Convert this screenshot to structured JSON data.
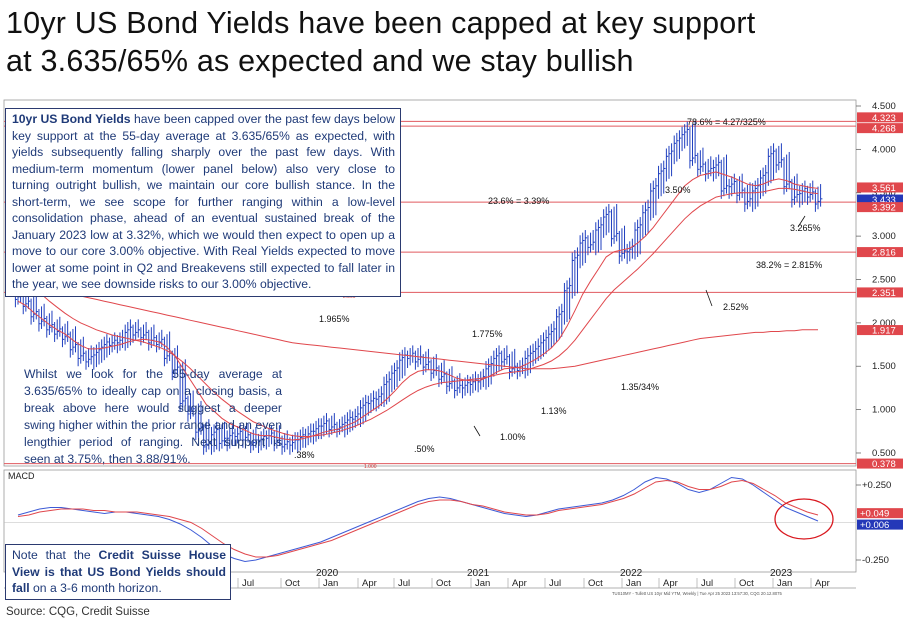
{
  "headline": {
    "line1": "10yr US Bond Yields have been capped at key support",
    "line2": "at 3.635/65% as expected and we stay bullish"
  },
  "annotation_box": {
    "bold_lead": "10yr US Bond Yields",
    "text": " have been capped over the past few days below key support at the 55-day average at 3.635/65% as expected, with yields subsequently falling sharply over the past few days. With medium-term momentum (lower panel below) also very close to turning outright bullish, we maintain our core bullish stance. In the short-term, we see scope for further ranging within a low-level consolidation phase, ahead of an eventual sustained break of the January 2023 low at 3.32%, which we would then expect to open up a move to our core 3.00% objective. With Real Yields expected to move lower at some point in Q2 and Breakevens still expected to fall later in the year, we see downside risks to our 3.00% objective."
  },
  "free_note": "Whilst we look for the 55-day average at 3.635/65% to ideally cap on a closing basis, a break above here would suggest a deeper swing higher within the prior range and an even lengthier period of ranging. Next support is seen at 3.75%, then 3.88/91%.",
  "house_view": {
    "prefix": "Note that the ",
    "bold": "Credit Suisse House View is that US Bond Yields should fall",
    "suffix": " on a 3-6 month horizon."
  },
  "source": "Source: CQG, Credit Suisse",
  "footer_small": "TUS10MY - Tullett US 10yr Mid YTM, Weekly | Tue Apr 25 2023 13:57:30, CQG 20.12.8075",
  "colors": {
    "bar": "#1f3fbf",
    "ma_red": "#e0474c",
    "hline": "#e15a5f",
    "text_blue": "#1f3a78",
    "macd_blue": "#3d5bd6",
    "signal_red": "#e0474c",
    "circle": "#d9181f"
  },
  "chart_data": [
    {
      "type": "line",
      "title": "",
      "y_axis": {
        "side": "right",
        "ticks": [
          "4.500",
          "4.000",
          "3.500",
          "3.000",
          "2.500",
          "2.000",
          "1.500",
          "1.000",
          "0.500"
        ],
        "range": [
          0.35,
          4.5
        ]
      },
      "x_axis_ticks": [
        "Jul",
        "Oct",
        "Jan",
        "Apr",
        "Jul",
        "Oct",
        "Jan",
        "Apr",
        "Jul",
        "Oct",
        "Jan",
        "Apr",
        "Jul",
        "Oct",
        "Jan",
        "Apr"
      ],
      "year_labels": [
        "2020",
        "2021",
        "2022",
        "2023"
      ],
      "right_value_flags": [
        {
          "label": "4.323",
          "value": 4.323
        },
        {
          "label": "4.268",
          "value": 4.268
        },
        {
          "label": "3.561",
          "value": 3.561
        },
        {
          "label": "3.433",
          "value": 3.433
        },
        {
          "label": "3.392",
          "value": 3.392
        },
        {
          "label": "2.816",
          "value": 2.816
        },
        {
          "label": "2.351",
          "value": 2.351
        },
        {
          "label": "1.917",
          "value": 1.917
        },
        {
          "label": "0.378",
          "value": 0.378
        }
      ],
      "horizontal_levels": [
        4.323,
        4.268,
        3.392,
        2.816,
        2.351,
        0.378
      ],
      "level_labels": [
        {
          "text": "78.6% = 4.27/325%"
        },
        {
          "text": "23.6% = 3.39%"
        },
        {
          "text": "38.2% = 2.815%"
        },
        {
          "text": "3.265%"
        },
        {
          "text": "3.50%"
        },
        {
          "text": "2.52%"
        },
        {
          "text": "1.965%"
        },
        {
          "text": "1.775%"
        },
        {
          "text": "1.35/34%"
        },
        {
          "text": "1.13%"
        },
        {
          "text": "1.00%"
        },
        {
          "text": ".50%"
        },
        {
          "text": ".38%"
        },
        {
          "text": "2.500"
        },
        {
          "text": "1.000"
        }
      ],
      "series": [
        {
          "name": "",
          "style": "ohlc-bars",
          "values": [
            2.3,
            2.22,
            2.1,
            2.02,
            1.95,
            1.9,
            1.84,
            1.72,
            1.62,
            1.58,
            1.66,
            1.75,
            1.77,
            1.8,
            1.92,
            1.89,
            1.86,
            1.8,
            1.78,
            1.62,
            1.46,
            1.1,
            0.98,
            0.77,
            0.6,
            0.74,
            0.64,
            0.7,
            0.72,
            0.68,
            0.62,
            0.66,
            0.7,
            0.64,
            0.6,
            0.62,
            0.68,
            0.72,
            0.78,
            0.84,
            0.8,
            0.8,
            0.88,
            0.92,
            1.05,
            1.1,
            1.15,
            1.32,
            1.45,
            1.6,
            1.62,
            1.58,
            1.52,
            1.45,
            1.38,
            1.3,
            1.25,
            1.28,
            1.32,
            1.35,
            1.5,
            1.62,
            1.58,
            1.47,
            1.48,
            1.62,
            1.7,
            1.8,
            1.9,
            2.1,
            2.4,
            2.75,
            2.95,
            2.9,
            3.1,
            3.25,
            3.0,
            2.8,
            2.85,
            3.1,
            3.3,
            3.55,
            3.75,
            3.95,
            4.1,
            4.2,
            3.9,
            3.8,
            3.75,
            3.82,
            3.55,
            3.6,
            3.5,
            3.4,
            3.55,
            3.7,
            3.95,
            3.85,
            3.6,
            3.45,
            3.52,
            3.48,
            3.4
          ]
        },
        {
          "name": "",
          "style": "red-ma-fast",
          "values": [
            2.25,
            2.2,
            2.12,
            2.05,
            1.98,
            1.92,
            1.87,
            1.8,
            1.74,
            1.7,
            1.7,
            1.71,
            1.73,
            1.75,
            1.78,
            1.8,
            1.81,
            1.8,
            1.78,
            1.72,
            1.62,
            1.48,
            1.34,
            1.2,
            1.06,
            0.98,
            0.9,
            0.84,
            0.8,
            0.76,
            0.72,
            0.7,
            0.7,
            0.68,
            0.66,
            0.65,
            0.66,
            0.68,
            0.71,
            0.74,
            0.76,
            0.78,
            0.82,
            0.86,
            0.92,
            0.98,
            1.04,
            1.12,
            1.21,
            1.31,
            1.39,
            1.44,
            1.46,
            1.46,
            1.44,
            1.4,
            1.36,
            1.34,
            1.33,
            1.34,
            1.38,
            1.43,
            1.47,
            1.48,
            1.49,
            1.53,
            1.58,
            1.64,
            1.71,
            1.81,
            1.96,
            2.14,
            2.33,
            2.48,
            2.62,
            2.76,
            2.82,
            2.84,
            2.86,
            2.92,
            3.0,
            3.1,
            3.22,
            3.34,
            3.46,
            3.58,
            3.65,
            3.7,
            3.72,
            3.74,
            3.71,
            3.68,
            3.64,
            3.6,
            3.58,
            3.6,
            3.64,
            3.66,
            3.64,
            3.6,
            3.58,
            3.56,
            3.55
          ]
        },
        {
          "name": "",
          "style": "red-ma-slow",
          "values": [
            2.55,
            2.48,
            2.41,
            2.33,
            2.25,
            2.18,
            2.11,
            2.05,
            2.0,
            1.96,
            1.92,
            1.89,
            1.86,
            1.84,
            1.82,
            1.8,
            1.78,
            1.75,
            1.72,
            1.68,
            1.62,
            1.55,
            1.47,
            1.38,
            1.29,
            1.2,
            1.12,
            1.05,
            0.98,
            0.92,
            0.86,
            0.82,
            0.78,
            0.75,
            0.72,
            0.7,
            0.69,
            0.69,
            0.7,
            0.71,
            0.73,
            0.75,
            0.78,
            0.81,
            0.85,
            0.89,
            0.94,
            0.99,
            1.05,
            1.11,
            1.17,
            1.22,
            1.26,
            1.29,
            1.31,
            1.32,
            1.33,
            1.34,
            1.35,
            1.36,
            1.38,
            1.4,
            1.42,
            1.43,
            1.44,
            1.46,
            1.49,
            1.52,
            1.56,
            1.62,
            1.7,
            1.8,
            1.92,
            2.04,
            2.16,
            2.28,
            2.38,
            2.46,
            2.54,
            2.62,
            2.71,
            2.8,
            2.9,
            3.0,
            3.1,
            3.2,
            3.28,
            3.35,
            3.4,
            3.45,
            3.47,
            3.49,
            3.5,
            3.5,
            3.5,
            3.51,
            3.53,
            3.55,
            3.55,
            3.54,
            3.52,
            3.5,
            3.49
          ]
        },
        {
          "name": "",
          "style": "red-ma-long",
          "values": [
            2.45,
            2.44,
            2.43,
            2.41,
            2.39,
            2.37,
            2.35,
            2.33,
            2.31,
            2.29,
            2.27,
            2.25,
            2.23,
            2.21,
            2.19,
            2.17,
            2.15,
            2.13,
            2.11,
            2.09,
            2.07,
            2.05,
            2.03,
            2.01,
            1.99,
            1.97,
            1.95,
            1.93,
            1.91,
            1.89,
            1.87,
            1.85,
            1.83,
            1.81,
            1.79,
            1.77,
            1.76,
            1.75,
            1.74,
            1.73,
            1.72,
            1.71,
            1.7,
            1.69,
            1.68,
            1.67,
            1.66,
            1.65,
            1.64,
            1.63,
            1.62,
            1.61,
            1.6,
            1.59,
            1.58,
            1.57,
            1.56,
            1.55,
            1.54,
            1.53,
            1.52,
            1.51,
            1.5,
            1.49,
            1.48,
            1.47,
            1.47,
            1.47,
            1.47,
            1.48,
            1.49,
            1.5,
            1.52,
            1.54,
            1.56,
            1.58,
            1.6,
            1.62,
            1.64,
            1.66,
            1.68,
            1.7,
            1.72,
            1.74,
            1.76,
            1.78,
            1.8,
            1.82,
            1.83,
            1.84,
            1.85,
            1.86,
            1.87,
            1.88,
            1.89,
            1.89,
            1.9,
            1.9,
            1.91,
            1.91,
            1.92,
            1.92,
            1.92
          ]
        }
      ]
    },
    {
      "type": "line",
      "title": "MACD",
      "y_axis": {
        "side": "right",
        "ticks": [
          "+0.250",
          "-0.250"
        ],
        "range": [
          -0.33,
          0.35
        ]
      },
      "right_value_flags": [
        {
          "label": "+0.049",
          "value": 0.049
        },
        {
          "label": "+0.006",
          "value": 0.006
        }
      ],
      "series": [
        {
          "name": "",
          "values": [
            0.05,
            0.07,
            0.09,
            0.1,
            0.1,
            0.09,
            0.08,
            0.07,
            0.06,
            0.07,
            0.07,
            0.06,
            0.05,
            0.04,
            0.02,
            -0.01,
            -0.05,
            -0.1,
            -0.16,
            -0.21,
            -0.24,
            -0.26,
            -0.25,
            -0.23,
            -0.21,
            -0.19,
            -0.17,
            -0.15,
            -0.13,
            -0.1,
            -0.07,
            -0.04,
            -0.01,
            0.02,
            0.05,
            0.08,
            0.11,
            0.14,
            0.16,
            0.17,
            0.16,
            0.14,
            0.12,
            0.1,
            0.08,
            0.06,
            0.05,
            0.04,
            0.05,
            0.07,
            0.09,
            0.1,
            0.11,
            0.12,
            0.13,
            0.15,
            0.18,
            0.22,
            0.27,
            0.3,
            0.29,
            0.26,
            0.22,
            0.2,
            0.22,
            0.26,
            0.3,
            0.29,
            0.25,
            0.2,
            0.15,
            0.1,
            0.07,
            0.04,
            0.01
          ]
        },
        {
          "name": "",
          "values": [
            0.04,
            0.05,
            0.07,
            0.08,
            0.09,
            0.09,
            0.09,
            0.08,
            0.08,
            0.07,
            0.07,
            0.07,
            0.06,
            0.05,
            0.04,
            0.02,
            0.0,
            -0.04,
            -0.09,
            -0.14,
            -0.18,
            -0.21,
            -0.23,
            -0.23,
            -0.22,
            -0.2,
            -0.18,
            -0.16,
            -0.14,
            -0.12,
            -0.09,
            -0.06,
            -0.03,
            0.0,
            0.03,
            0.06,
            0.09,
            0.12,
            0.14,
            0.15,
            0.15,
            0.14,
            0.12,
            0.11,
            0.09,
            0.07,
            0.06,
            0.05,
            0.05,
            0.06,
            0.08,
            0.09,
            0.1,
            0.11,
            0.12,
            0.14,
            0.16,
            0.19,
            0.23,
            0.27,
            0.28,
            0.27,
            0.24,
            0.22,
            0.22,
            0.24,
            0.27,
            0.28,
            0.26,
            0.22,
            0.18,
            0.13,
            0.1,
            0.07,
            0.05
          ]
        }
      ]
    }
  ]
}
